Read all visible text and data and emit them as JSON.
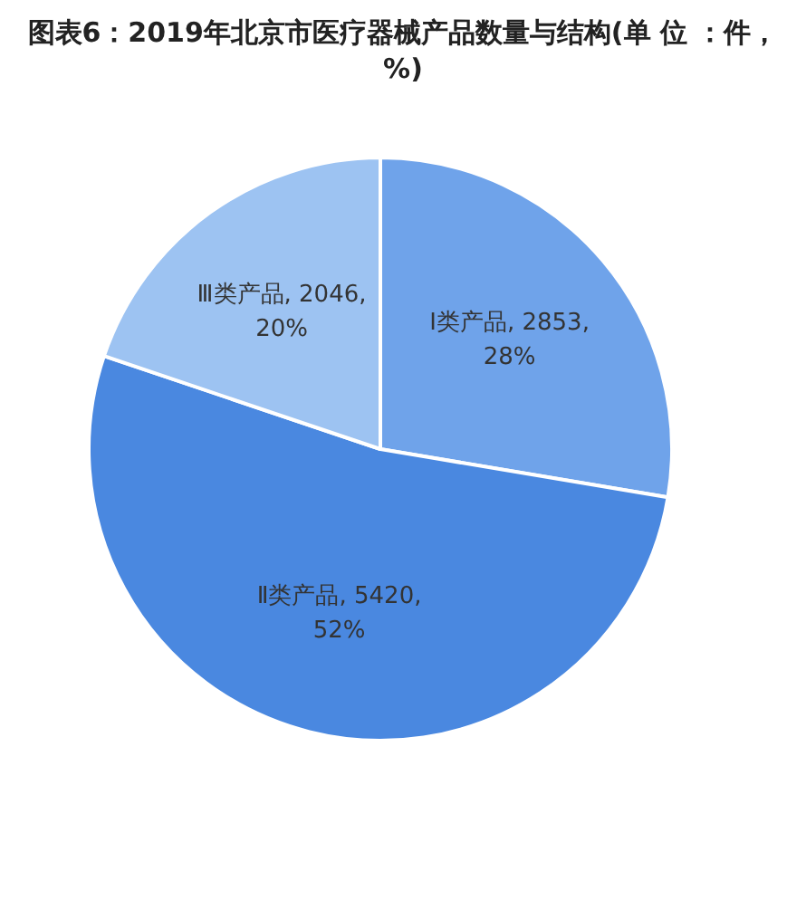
{
  "chart_data": {
    "type": "pie",
    "title": "图表6：2019年北京市医疗器械产品数量与结构(单 位 ：件，%)",
    "categories": [
      "Ⅰ类产品",
      "Ⅱ类产品",
      "Ⅲ类产品"
    ],
    "values": [
      2853,
      5420,
      2046
    ],
    "colors": [
      "#6fa3ea",
      "#4a88e0",
      "#9dc3f2"
    ],
    "value_labels": [
      "2853, 28%",
      "5420, 52%",
      "2046, 20%"
    ],
    "legend": false
  }
}
